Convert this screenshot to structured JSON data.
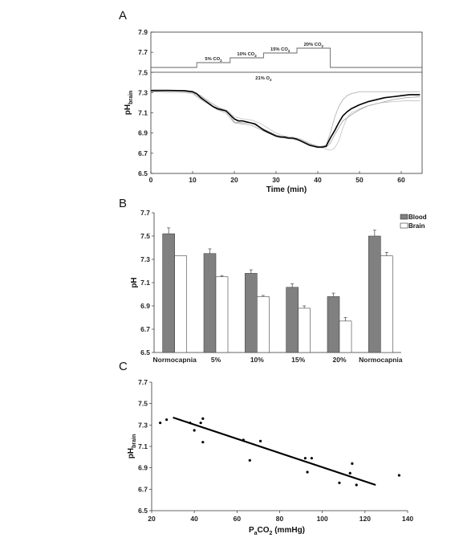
{
  "chart_data": [
    {
      "panel": "A",
      "type": "line",
      "xlabel": "Time (min)",
      "ylabel": {
        "main": "pH",
        "sub": "brain"
      },
      "xlim": [
        0,
        65
      ],
      "ylim": [
        6.5,
        7.9
      ],
      "xticks": [
        0,
        10,
        20,
        30,
        40,
        50,
        60
      ],
      "yticks": [
        6.5,
        6.7,
        6.9,
        7.1,
        7.3,
        7.5,
        7.7,
        7.9
      ],
      "grid": false,
      "protocol": {
        "co2_steps": [
          {
            "label": "5% CO",
            "sub": "2",
            "start": 11,
            "end": 19
          },
          {
            "label": "10% CO",
            "sub": "2",
            "start": 19,
            "end": 27
          },
          {
            "label": "15% CO",
            "sub": "2",
            "start": 27,
            "end": 35
          },
          {
            "label": "20% CO",
            "sub": "2",
            "start": 35,
            "end": 43
          }
        ],
        "o2_label": {
          "label": "21% O",
          "sub": "2"
        }
      },
      "series": [
        {
          "role": "mean",
          "color": "#000000",
          "x": [
            0,
            2,
            4,
            6,
            8,
            10,
            11,
            12,
            13,
            14,
            15,
            16,
            17,
            18,
            19,
            20,
            21,
            22,
            23,
            24,
            25,
            26,
            27,
            28,
            29,
            30,
            31,
            32,
            33,
            34,
            35,
            36,
            37,
            38,
            39,
            40,
            41,
            42,
            43,
            44,
            45,
            46,
            47,
            48,
            50,
            52,
            54,
            56,
            58,
            60,
            62,
            64.5
          ],
          "y": [
            7.32,
            7.32,
            7.32,
            7.32,
            7.32,
            7.31,
            7.29,
            7.25,
            7.22,
            7.19,
            7.16,
            7.14,
            7.13,
            7.12,
            7.08,
            7.04,
            7.02,
            7.02,
            7.01,
            7.0,
            6.99,
            6.96,
            6.93,
            6.91,
            6.89,
            6.87,
            6.86,
            6.86,
            6.85,
            6.85,
            6.84,
            6.82,
            6.8,
            6.78,
            6.77,
            6.76,
            6.76,
            6.77,
            6.85,
            6.92,
            7.0,
            7.07,
            7.11,
            7.14,
            7.18,
            7.21,
            7.23,
            7.25,
            7.26,
            7.27,
            7.28,
            7.28
          ]
        },
        {
          "role": "individual",
          "color": "#b4b4b4",
          "x": [
            0,
            4,
            8,
            10,
            12,
            14,
            16,
            18,
            19,
            20,
            22,
            24,
            26,
            28,
            30,
            32,
            34,
            36,
            38,
            40,
            42,
            43,
            44,
            45,
            46,
            47,
            48,
            50,
            52,
            55,
            58,
            61,
            64.5
          ],
          "y": [
            7.33,
            7.33,
            7.32,
            7.3,
            7.24,
            7.18,
            7.13,
            7.1,
            7.05,
            7.0,
            6.99,
            6.98,
            6.94,
            6.9,
            6.87,
            6.85,
            6.84,
            6.82,
            6.78,
            6.76,
            6.78,
            6.9,
            7.05,
            7.16,
            7.23,
            7.27,
            7.29,
            7.31,
            7.31,
            7.31,
            7.31,
            7.31,
            7.31
          ]
        },
        {
          "role": "individual",
          "color": "#c8c8c8",
          "x": [
            0,
            4,
            8,
            10,
            12,
            14,
            16,
            18,
            19,
            20,
            22,
            24,
            26,
            28,
            30,
            32,
            34,
            36,
            38,
            40,
            42,
            43,
            44,
            45,
            46,
            47,
            48,
            50,
            52,
            55,
            58,
            61,
            64.5
          ],
          "y": [
            7.31,
            7.3,
            7.3,
            7.29,
            7.23,
            7.18,
            7.15,
            7.13,
            7.1,
            7.06,
            7.04,
            7.03,
            7.0,
            6.95,
            6.9,
            6.87,
            6.86,
            6.84,
            6.8,
            6.77,
            6.74,
            6.73,
            6.75,
            6.82,
            6.95,
            7.05,
            7.1,
            7.14,
            7.17,
            7.2,
            7.21,
            7.22,
            7.22
          ]
        },
        {
          "role": "individual",
          "color": "#a8a8a8",
          "x": [
            0,
            4,
            8,
            10,
            12,
            14,
            16,
            18,
            19,
            20,
            22,
            24,
            26,
            28,
            30,
            32,
            34,
            36,
            38,
            40,
            42,
            43,
            44,
            45,
            46,
            48,
            50,
            52,
            55,
            58,
            61,
            64.5
          ],
          "y": [
            7.32,
            7.32,
            7.31,
            7.3,
            7.27,
            7.21,
            7.16,
            7.12,
            7.07,
            7.01,
            7.0,
            7.0,
            6.96,
            6.92,
            6.88,
            6.86,
            6.85,
            6.83,
            6.79,
            6.77,
            6.76,
            6.8,
            6.88,
            6.95,
            7.02,
            7.08,
            7.13,
            7.17,
            7.2,
            7.23,
            7.25,
            7.26
          ]
        }
      ]
    },
    {
      "panel": "B",
      "type": "bar",
      "ylabel": "pH",
      "ylim": [
        6.5,
        7.7
      ],
      "yticks": [
        6.5,
        6.7,
        6.9,
        7.1,
        7.3,
        7.5,
        7.7
      ],
      "categories": [
        "Normocapnia",
        "5%",
        "10%",
        "15%",
        "20%",
        "Normocapnia"
      ],
      "legend_position": "top-right",
      "series": [
        {
          "name": "Blood",
          "color": "#808080",
          "values": [
            7.52,
            7.35,
            7.18,
            7.06,
            6.98,
            7.5
          ],
          "errors": [
            0.05,
            0.04,
            0.03,
            0.03,
            0.03,
            0.05
          ]
        },
        {
          "name": "Brain",
          "color": "#ffffff",
          "values": [
            7.33,
            7.15,
            6.98,
            6.88,
            6.77,
            7.33
          ],
          "errors": [
            0.0,
            0.01,
            0.01,
            0.02,
            0.03,
            0.03
          ]
        }
      ]
    },
    {
      "panel": "C",
      "type": "scatter",
      "xlabel": {
        "p": "P",
        "p_sub": "a",
        "co": "CO",
        "co_sub": "2",
        "unit": " (mmHg)"
      },
      "ylabel": {
        "main": "pH",
        "sub": "brain"
      },
      "xlim": [
        20,
        140
      ],
      "ylim": [
        6.5,
        7.7
      ],
      "xticks": [
        20,
        40,
        60,
        80,
        100,
        120,
        140
      ],
      "yticks": [
        6.5,
        6.7,
        6.9,
        7.1,
        7.3,
        7.5,
        7.7
      ],
      "points": [
        [
          24,
          7.32
        ],
        [
          27,
          7.35
        ],
        [
          38,
          7.32
        ],
        [
          40,
          7.25
        ],
        [
          43,
          7.32
        ],
        [
          44,
          7.36
        ],
        [
          44,
          7.14
        ],
        [
          63,
          7.16
        ],
        [
          66,
          6.97
        ],
        [
          71,
          7.15
        ],
        [
          92,
          6.99
        ],
        [
          93,
          6.86
        ],
        [
          95,
          6.99
        ],
        [
          108,
          6.76
        ],
        [
          113,
          6.85
        ],
        [
          114,
          6.94
        ],
        [
          116,
          6.74
        ],
        [
          136,
          6.83
        ]
      ],
      "fit": {
        "x": [
          30,
          125
        ],
        "y": [
          7.37,
          6.74
        ]
      }
    }
  ]
}
